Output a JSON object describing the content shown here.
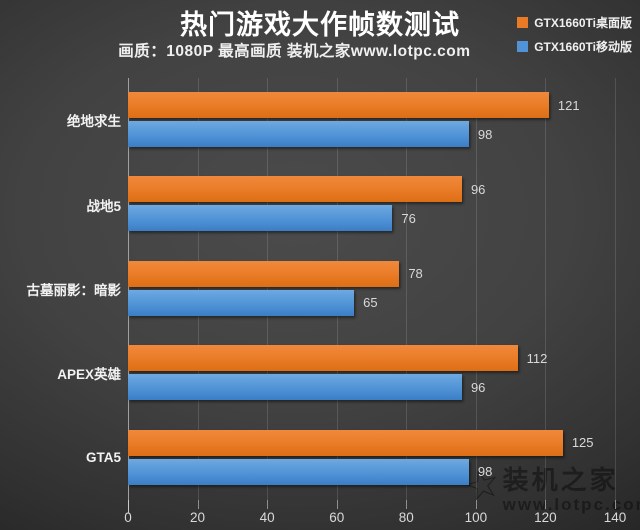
{
  "header": {
    "title": "热门游戏大作帧数测试",
    "subtitle": "画质：1080P 最高画质 装机之家www.lotpc.com"
  },
  "legend": {
    "position": "top-right",
    "items": [
      {
        "label": "GTX1660Ti桌面版",
        "color": "#e97b26",
        "color_light": "#f0893c",
        "color_dark": "#dd6e15"
      },
      {
        "label": "GTX1660Ti移动版",
        "color": "#5093d6",
        "color_light": "#6ea9e0",
        "color_dark": "#3c7ec6"
      }
    ]
  },
  "watermark": {
    "brand": "装机之家",
    "url": "www.lotpc.com",
    "icon": "star-outline-icon"
  },
  "colors": {
    "background_center": "#4a4a4a",
    "background_edge": "#232323",
    "gridline": "rgba(255,255,255,0.13)",
    "axis_line": "#a0a0a0",
    "text_primary": "#f2f2f2",
    "text_secondary": "#d9d9d9"
  },
  "chart_data": {
    "type": "bar",
    "orientation": "horizontal",
    "title": "热门游戏大作帧数测试",
    "subtitle": "画质：1080P 最高画质 装机之家www.lotpc.com",
    "categories": [
      "绝地求生",
      "战地5",
      "古墓丽影：暗影",
      "APEX英雄",
      "GTA5"
    ],
    "series": [
      {
        "name": "GTX1660Ti桌面版",
        "color": "#e97b26",
        "values": [
          121,
          96,
          78,
          112,
          125
        ]
      },
      {
        "name": "GTX1660Ti移动版",
        "color": "#5093d6",
        "values": [
          98,
          76,
          65,
          96,
          98
        ]
      }
    ],
    "value_labels": [
      [
        121,
        96,
        78,
        112,
        125
      ],
      [
        98,
        76,
        65,
        96,
        98
      ]
    ],
    "xlabel": "",
    "ylabel": "",
    "xlim": [
      0,
      140
    ],
    "xticks": [
      0,
      20,
      40,
      60,
      80,
      100,
      120,
      140
    ],
    "grid": true,
    "legend_position": "top-right"
  }
}
